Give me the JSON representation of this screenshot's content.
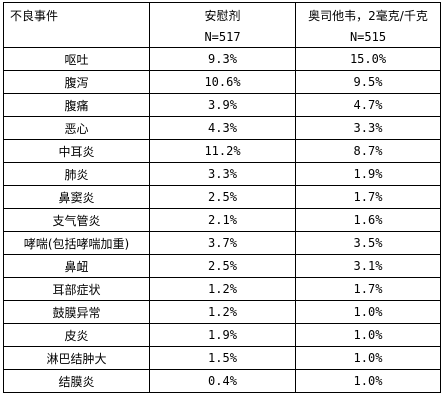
{
  "table": {
    "headers": {
      "event": "不良事件",
      "placebo": "安慰剂",
      "placebo_n": "N=517",
      "oseltamivir": "奥司他韦，2毫克/千克",
      "oseltamivir_n": "N=515"
    },
    "rows": [
      {
        "event": "呕吐",
        "placebo": "9.3%",
        "oseltamivir": "15.0%"
      },
      {
        "event": "腹泻",
        "placebo": "10.6%",
        "oseltamivir": "9.5%"
      },
      {
        "event": "腹痛",
        "placebo": "3.9%",
        "oseltamivir": "4.7%"
      },
      {
        "event": "恶心",
        "placebo": "4.3%",
        "oseltamivir": "3.3%"
      },
      {
        "event": "中耳炎",
        "placebo": "11.2%",
        "oseltamivir": "8.7%"
      },
      {
        "event": "肺炎",
        "placebo": "3.3%",
        "oseltamivir": "1.9%"
      },
      {
        "event": "鼻窦炎",
        "placebo": "2.5%",
        "oseltamivir": "1.7%"
      },
      {
        "event": "支气管炎",
        "placebo": "2.1%",
        "oseltamivir": "1.6%"
      },
      {
        "event": "哮喘(包括哮喘加重)",
        "placebo": "3.7%",
        "oseltamivir": "3.5%"
      },
      {
        "event": "鼻衄",
        "placebo": "2.5%",
        "oseltamivir": "3.1%"
      },
      {
        "event": "耳部症状",
        "placebo": "1.2%",
        "oseltamivir": "1.7%"
      },
      {
        "event": "鼓膜异常",
        "placebo": "1.2%",
        "oseltamivir": "1.0%"
      },
      {
        "event": "皮炎",
        "placebo": "1.9%",
        "oseltamivir": "1.0%"
      },
      {
        "event": "淋巴结肿大",
        "placebo": "1.5%",
        "oseltamivir": "1.0%"
      },
      {
        "event": "结膜炎",
        "placebo": "0.4%",
        "oseltamivir": "1.0%"
      }
    ]
  }
}
